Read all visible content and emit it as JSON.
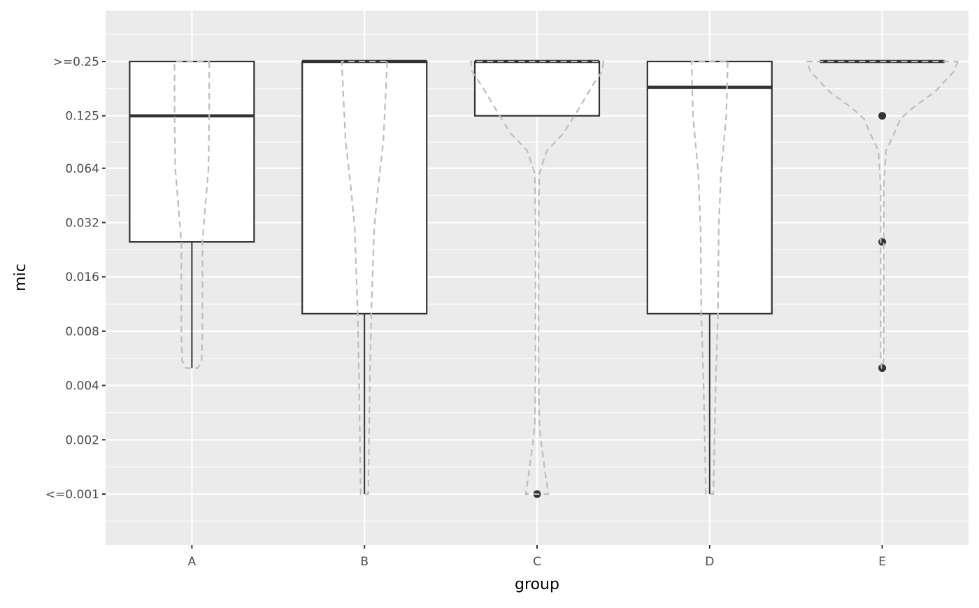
{
  "chart_data": {
    "type": "boxplot+violin",
    "xlabel": "group",
    "ylabel": "mic",
    "y_scale": "log2",
    "categories": [
      "A",
      "B",
      "C",
      "D",
      "E"
    ],
    "y_ticks": [
      {
        "value": 0.001,
        "label": "<=0.001"
      },
      {
        "value": 0.002,
        "label": "0.002"
      },
      {
        "value": 0.004,
        "label": "0.004"
      },
      {
        "value": 0.008,
        "label": "0.008"
      },
      {
        "value": 0.016,
        "label": "0.016"
      },
      {
        "value": 0.032,
        "label": "0.032"
      },
      {
        "value": 0.064,
        "label": "0.064"
      },
      {
        "value": 0.125,
        "label": "0.125"
      },
      {
        "value": 0.25,
        "label": ">=0.25"
      }
    ],
    "ylim": [
      0.00075,
      0.33
    ],
    "grid": true,
    "colors": {
      "panel": "#EBEBEB",
      "grid": "#FFFFFF",
      "box": "#333333",
      "violin": "#BDBDBD"
    },
    "boxes": [
      {
        "group": "A",
        "whisker_low": 0.005,
        "q1": 0.025,
        "median": 0.125,
        "q3": 0.25,
        "whisker_high": 0.25,
        "outliers": []
      },
      {
        "group": "B",
        "whisker_low": 0.001,
        "q1": 0.01,
        "median": 0.25,
        "q3": 0.25,
        "whisker_high": 0.25,
        "outliers": []
      },
      {
        "group": "C",
        "whisker_low": 0.125,
        "q1": 0.125,
        "median": 0.25,
        "q3": 0.25,
        "whisker_high": 0.25,
        "outliers": [
          0.001
        ]
      },
      {
        "group": "D",
        "whisker_low": 0.001,
        "q1": 0.01,
        "median": 0.18,
        "q3": 0.25,
        "whisker_high": 0.25,
        "outliers": []
      },
      {
        "group": "E",
        "whisker_low": 0.25,
        "q1": 0.25,
        "median": 0.25,
        "q3": 0.25,
        "whisker_high": 0.25,
        "outliers": [
          0.125,
          0.025,
          0.005
        ]
      }
    ],
    "violins": [
      {
        "group": "A",
        "profile": [
          [
            0.25,
            0.23
          ],
          [
            0.125,
            0.23
          ],
          [
            0.064,
            0.22
          ],
          [
            0.032,
            0.16
          ],
          [
            0.025,
            0.14
          ],
          [
            0.008,
            0.14
          ],
          [
            0.0055,
            0.13
          ],
          [
            0.005,
            0.08
          ]
        ]
      },
      {
        "group": "B",
        "profile": [
          [
            0.25,
            0.3
          ],
          [
            0.16,
            0.28
          ],
          [
            0.09,
            0.25
          ],
          [
            0.05,
            0.18
          ],
          [
            0.03,
            0.13
          ],
          [
            0.01,
            0.09
          ],
          [
            0.004,
            0.07
          ],
          [
            0.001,
            0.05
          ]
        ]
      },
      {
        "group": "C",
        "profile": [
          [
            0.25,
            0.88
          ],
          [
            0.22,
            0.86
          ],
          [
            0.18,
            0.72
          ],
          [
            0.13,
            0.52
          ],
          [
            0.1,
            0.35
          ],
          [
            0.08,
            0.13
          ],
          [
            0.06,
            0.03
          ],
          [
            0.03,
            0.02
          ],
          [
            0.005,
            0.02
          ],
          [
            0.0025,
            0.03
          ],
          [
            0.002,
            0.05
          ],
          [
            0.0013,
            0.11
          ],
          [
            0.001,
            0.15
          ]
        ]
      },
      {
        "group": "D",
        "profile": [
          [
            0.25,
            0.24
          ],
          [
            0.125,
            0.22
          ],
          [
            0.06,
            0.15
          ],
          [
            0.03,
            0.12
          ],
          [
            0.01,
            0.11
          ],
          [
            0.004,
            0.08
          ],
          [
            0.001,
            0.05
          ]
        ]
      },
      {
        "group": "E",
        "profile": [
          [
            0.25,
            1.0
          ],
          [
            0.22,
            0.95
          ],
          [
            0.17,
            0.7
          ],
          [
            0.14,
            0.42
          ],
          [
            0.12,
            0.24
          ],
          [
            0.1,
            0.16
          ],
          [
            0.08,
            0.05
          ],
          [
            0.05,
            0.02
          ],
          [
            0.02,
            0.02
          ],
          [
            0.006,
            0.02
          ],
          [
            0.005,
            0.01
          ]
        ]
      }
    ]
  }
}
